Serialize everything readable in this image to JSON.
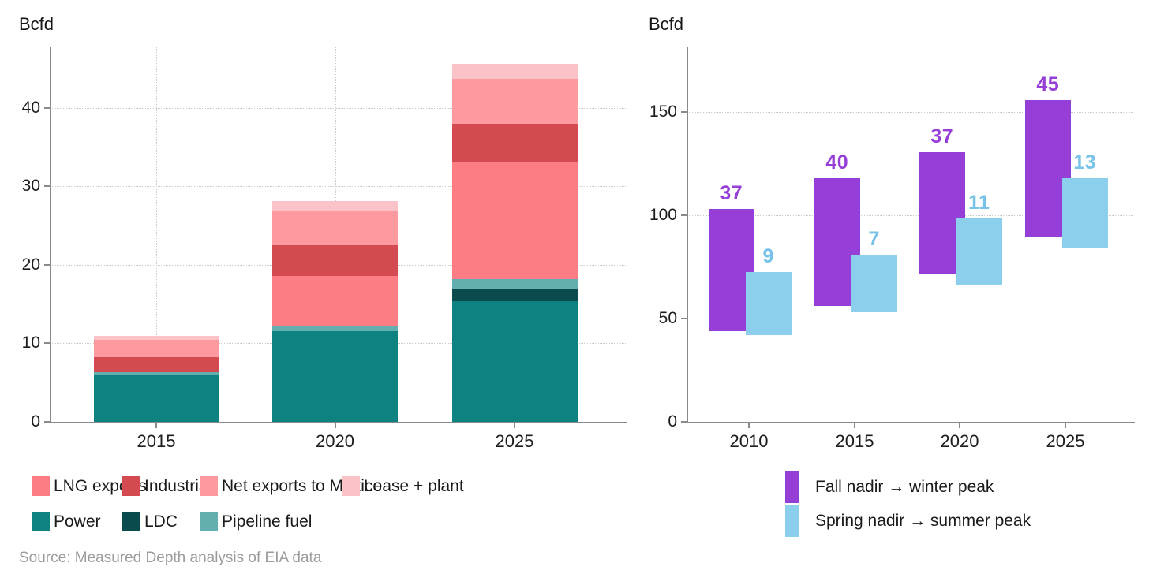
{
  "page": {
    "source_note": "Source: Measured Depth analysis of EIA data"
  },
  "chart_data": [
    {
      "type": "bar",
      "subtype": "stacked-vertical",
      "ylabel": "Bcfd",
      "categories": [
        "2015",
        "2020",
        "2025"
      ],
      "y_ticks": [
        0,
        10,
        20,
        30,
        40
      ],
      "ylim": [
        0,
        47.8
      ],
      "grid": {
        "horizontal": true,
        "vertical": true,
        "style": "dotted"
      },
      "series": [
        {
          "name": "Power",
          "color": "#0D8281",
          "values": [
            5.9,
            11.5,
            15.4
          ]
        },
        {
          "name": "LDC",
          "color": "#0A4B4D",
          "values": [
            0,
            0,
            1.55
          ]
        },
        {
          "name": "Pipeline fuel",
          "color": "#63AEAE",
          "values": [
            0.45,
            0.75,
            1.2
          ]
        },
        {
          "name": "LNG exports",
          "color": "#FC7D84",
          "values": [
            0,
            6.35,
            14.9
          ]
        },
        {
          "name": "Industrial",
          "color": "#D34A51",
          "values": [
            1.9,
            3.85,
            4.9
          ]
        },
        {
          "name": "Net exports to Mexico",
          "color": "#FD9AA0",
          "values": [
            2.2,
            4.4,
            5.75
          ]
        },
        {
          "name": "Lease + plant",
          "color": "#FBC3C8",
          "values": [
            0.5,
            1.3,
            1.85
          ]
        }
      ],
      "totals": [
        10.95,
        28.15,
        45.55
      ],
      "legend_rows": [
        [
          {
            "label": "LNG exports",
            "color": "#FC7D84"
          },
          {
            "label": "Industrial",
            "color": "#D34A51"
          },
          {
            "label": "Net exports to Mexico",
            "color": "#FD9AA0"
          },
          {
            "label": "Lease + plant",
            "color": "#FBC3C8"
          }
        ],
        [
          {
            "label": "Power",
            "color": "#0D8281"
          },
          {
            "label": "LDC",
            "color": "#0A4B4D"
          },
          {
            "label": "Pipeline fuel",
            "color": "#63AEAE"
          }
        ]
      ]
    },
    {
      "type": "bar",
      "subtype": "floating-range",
      "ylabel": "Bcfd",
      "categories": [
        "2010",
        "2015",
        "2020",
        "2025"
      ],
      "y_ticks": [
        0,
        50,
        100,
        150
      ],
      "ylim": [
        0,
        181.5
      ],
      "grid": {
        "horizontal": true,
        "vertical": false,
        "style": "dotted"
      },
      "series": [
        {
          "name": "Fall nadir → winter peak",
          "color": "#963ED8",
          "label_color": "#963ED8",
          "ranges": [
            [
              44,
              103
            ],
            [
              56,
              118
            ],
            [
              71.5,
              130.5
            ],
            [
              89.5,
              155.5
            ]
          ],
          "labels": [
            "37",
            "40",
            "37",
            "45"
          ]
        },
        {
          "name": "Spring nadir → summer peak",
          "color": "#8BCFEC",
          "label_color": "#77C2E8",
          "ranges": [
            [
              42,
              72.5
            ],
            [
              53,
              81
            ],
            [
              66,
              98.5
            ],
            [
              84,
              118
            ]
          ],
          "labels": [
            "9",
            "7",
            "11",
            "13"
          ]
        }
      ],
      "legend": [
        {
          "label": "Fall nadir → winter peak",
          "color": "#963ED8"
        },
        {
          "label": "Spring nadir → summer peak",
          "color": "#8BCFEC"
        }
      ]
    }
  ]
}
